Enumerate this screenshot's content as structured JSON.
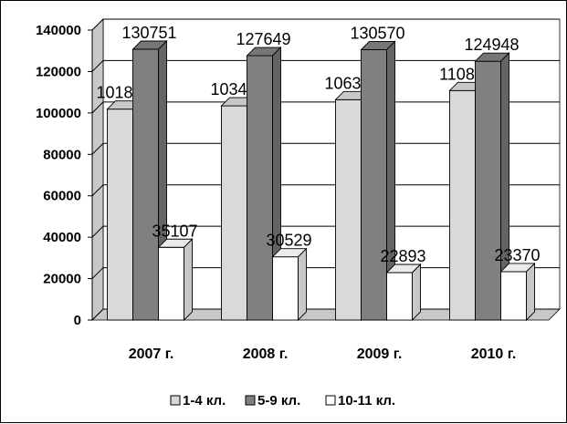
{
  "chart_data": {
    "type": "bar",
    "categories": [
      "2007 г.",
      "2008 г.",
      "2009 г.",
      "2010 г."
    ],
    "series": [
      {
        "name": "1-4 кл.",
        "values": [
          101829,
          103421,
          106385,
          110807
        ],
        "color": "#d9d9d9"
      },
      {
        "name": "5-9 кл.",
        "values": [
          130751,
          127649,
          130570,
          124948
        ],
        "color": "#808080"
      },
      {
        "name": "10-11 кл.",
        "values": [
          35107,
          30529,
          22893,
          23370
        ],
        "color": "#ffffff"
      }
    ],
    "yticks": [
      0,
      20000,
      40000,
      60000,
      80000,
      100000,
      120000,
      140000
    ],
    "ylim": [
      0,
      140000
    ],
    "grid": true,
    "three_d": true,
    "legend": "bottom",
    "data_labels": true
  }
}
